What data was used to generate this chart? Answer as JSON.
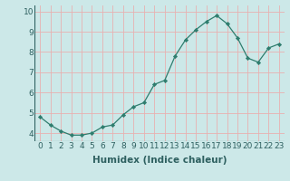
{
  "x": [
    0,
    1,
    2,
    3,
    4,
    5,
    6,
    7,
    8,
    9,
    10,
    11,
    12,
    13,
    14,
    15,
    16,
    17,
    18,
    19,
    20,
    21,
    22,
    23
  ],
  "y": [
    4.8,
    4.4,
    4.1,
    3.9,
    3.9,
    4.0,
    4.3,
    4.4,
    4.9,
    5.3,
    5.5,
    6.4,
    6.6,
    7.8,
    8.6,
    9.1,
    9.5,
    9.8,
    9.4,
    8.7,
    7.7,
    7.5,
    8.2,
    8.4
  ],
  "xlabel": "Humidex (Indice chaleur)",
  "ylim": [
    3.6,
    10.3
  ],
  "xlim": [
    -0.5,
    23.5
  ],
  "yticks": [
    4,
    5,
    6,
    7,
    8,
    9,
    10
  ],
  "xticks": [
    0,
    1,
    2,
    3,
    4,
    5,
    6,
    7,
    8,
    9,
    10,
    11,
    12,
    13,
    14,
    15,
    16,
    17,
    18,
    19,
    20,
    21,
    22,
    23
  ],
  "line_color": "#2e7d6e",
  "marker_color": "#2e7d6e",
  "bg_color": "#cce8e8",
  "grid_color": "#e8b0b0",
  "xlabel_fontsize": 7.5,
  "tick_fontsize": 6.5,
  "tick_color": "#2e6060",
  "xlabel_color": "#2e6060"
}
